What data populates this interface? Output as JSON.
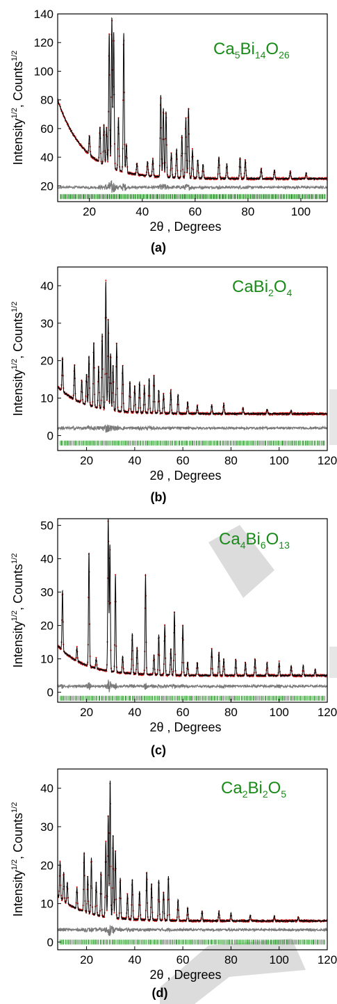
{
  "figure": {
    "panel_labels": [
      "(a)",
      "(b)",
      "(c)",
      "(d)"
    ]
  },
  "colors": {
    "observed": "#e02020",
    "calculated": "#000000",
    "difference": "#7a7a7a",
    "reflections": "#1a8a1a",
    "formula": "#1a8a1a",
    "watermark": "#d8d8d8"
  },
  "chart_data": [
    {
      "type": "line",
      "panel": "(a)",
      "compound": {
        "parts": [
          "Ca",
          "5",
          "Bi",
          "14",
          "O",
          "26"
        ]
      },
      "ylabel": {
        "main": "Intensity",
        "exp1": "1/2",
        "mid": ", Counts",
        "exp2": "1/2"
      },
      "xlabel": "2θ , Degrees",
      "xlim": [
        8,
        110
      ],
      "ylim": [
        9,
        140
      ],
      "xticks": [
        20,
        40,
        60,
        80,
        100
      ],
      "yticks": [
        20,
        40,
        60,
        80,
        100,
        120,
        140
      ],
      "difference_level": 19,
      "reflection_level": 12.5,
      "background": {
        "start": 80,
        "end": 25
      },
      "peaks": [
        {
          "x": 20,
          "y": 38
        },
        {
          "x": 24,
          "y": 50
        },
        {
          "x": 25.5,
          "y": 53
        },
        {
          "x": 26.5,
          "y": 52
        },
        {
          "x": 27.5,
          "y": 118
        },
        {
          "x": 28.5,
          "y": 130
        },
        {
          "x": 29.2,
          "y": 120
        },
        {
          "x": 31,
          "y": 62
        },
        {
          "x": 33,
          "y": 122
        },
        {
          "x": 34,
          "y": 45
        },
        {
          "x": 38,
          "y": 33
        },
        {
          "x": 42,
          "y": 35
        },
        {
          "x": 44,
          "y": 37
        },
        {
          "x": 47,
          "y": 82
        },
        {
          "x": 48,
          "y": 73
        },
        {
          "x": 49,
          "y": 71
        },
        {
          "x": 51,
          "y": 42
        },
        {
          "x": 53,
          "y": 45
        },
        {
          "x": 55,
          "y": 55
        },
        {
          "x": 56.5,
          "y": 67
        },
        {
          "x": 57.5,
          "y": 74
        },
        {
          "x": 59,
          "y": 45
        },
        {
          "x": 61,
          "y": 38
        },
        {
          "x": 63,
          "y": 35
        },
        {
          "x": 69,
          "y": 40
        },
        {
          "x": 72,
          "y": 35
        },
        {
          "x": 77,
          "y": 40
        },
        {
          "x": 79,
          "y": 38
        },
        {
          "x": 85,
          "y": 32
        },
        {
          "x": 90,
          "y": 31
        },
        {
          "x": 96,
          "y": 30
        },
        {
          "x": 102,
          "y": 29
        }
      ]
    },
    {
      "type": "line",
      "panel": "(b)",
      "compound": {
        "parts": [
          "CaBi",
          "2",
          "O",
          "4"
        ]
      },
      "ylabel": {
        "main": "Intensity",
        "exp1": "1/2",
        "mid": ", Counts",
        "exp2": "1/2"
      },
      "xlabel": "2θ , Degrees",
      "xlim": [
        8,
        120
      ],
      "ylim": [
        -4,
        45
      ],
      "xticks": [
        20,
        40,
        60,
        80,
        100,
        120
      ],
      "yticks": [
        0,
        10,
        20,
        30,
        40
      ],
      "difference_level": 2,
      "reflection_level": -2,
      "background": {
        "start": 13,
        "end": 5.8
      },
      "peaks": [
        {
          "x": 10,
          "y": 15
        },
        {
          "x": 15,
          "y": 15
        },
        {
          "x": 18,
          "y": 12
        },
        {
          "x": 20,
          "y": 14
        },
        {
          "x": 21,
          "y": 19
        },
        {
          "x": 23,
          "y": 23
        },
        {
          "x": 25,
          "y": 17
        },
        {
          "x": 26.5,
          "y": 26
        },
        {
          "x": 28,
          "y": 40
        },
        {
          "x": 29,
          "y": 30
        },
        {
          "x": 30,
          "y": 21
        },
        {
          "x": 31,
          "y": 18
        },
        {
          "x": 32.5,
          "y": 24
        },
        {
          "x": 35,
          "y": 18
        },
        {
          "x": 38,
          "y": 14
        },
        {
          "x": 40,
          "y": 13
        },
        {
          "x": 42,
          "y": 14
        },
        {
          "x": 44,
          "y": 13
        },
        {
          "x": 46,
          "y": 15
        },
        {
          "x": 48,
          "y": 16
        },
        {
          "x": 50,
          "y": 12
        },
        {
          "x": 52,
          "y": 11
        },
        {
          "x": 55,
          "y": 12
        },
        {
          "x": 58,
          "y": 11
        },
        {
          "x": 62,
          "y": 9
        },
        {
          "x": 66,
          "y": 8
        },
        {
          "x": 72,
          "y": 8
        },
        {
          "x": 77,
          "y": 8.5
        },
        {
          "x": 85,
          "y": 7.5
        },
        {
          "x": 95,
          "y": 7
        },
        {
          "x": 105,
          "y": 6.8
        }
      ]
    },
    {
      "type": "line",
      "panel": "(c)",
      "compound": {
        "parts": [
          "Ca",
          "4",
          "Bi",
          "6",
          "O",
          "13"
        ]
      },
      "ylabel": {
        "main": "Intensity",
        "exp1": "1/2",
        "mid": ", Counts",
        "exp2": "1/2"
      },
      "xlabel": "2θ , Degrees",
      "xlim": [
        8,
        120
      ],
      "ylim": [
        -3,
        52
      ],
      "xticks": [
        20,
        40,
        60,
        80,
        100,
        120
      ],
      "yticks": [
        0,
        10,
        20,
        30,
        40,
        50
      ],
      "difference_level": 1.8,
      "reflection_level": -1.8,
      "background": {
        "start": 14,
        "end": 5
      },
      "peaks": [
        {
          "x": 10,
          "y": 23
        },
        {
          "x": 16,
          "y": 9
        },
        {
          "x": 21,
          "y": 39
        },
        {
          "x": 24,
          "y": 8
        },
        {
          "x": 29,
          "y": 51
        },
        {
          "x": 29.7,
          "y": 43
        },
        {
          "x": 32,
          "y": 34
        },
        {
          "x": 35,
          "y": 10
        },
        {
          "x": 39,
          "y": 17
        },
        {
          "x": 41,
          "y": 13
        },
        {
          "x": 44.5,
          "y": 35
        },
        {
          "x": 48,
          "y": 11
        },
        {
          "x": 50,
          "y": 17
        },
        {
          "x": 52.5,
          "y": 20
        },
        {
          "x": 55,
          "y": 13
        },
        {
          "x": 56.5,
          "y": 24
        },
        {
          "x": 60,
          "y": 20
        },
        {
          "x": 62,
          "y": 9
        },
        {
          "x": 66,
          "y": 9
        },
        {
          "x": 72,
          "y": 13
        },
        {
          "x": 75,
          "y": 12
        },
        {
          "x": 77,
          "y": 10
        },
        {
          "x": 82,
          "y": 10
        },
        {
          "x": 86,
          "y": 9
        },
        {
          "x": 90,
          "y": 10
        },
        {
          "x": 95,
          "y": 9
        },
        {
          "x": 100,
          "y": 9
        },
        {
          "x": 105,
          "y": 8
        },
        {
          "x": 110,
          "y": 8
        },
        {
          "x": 115,
          "y": 7
        }
      ]
    },
    {
      "type": "line",
      "panel": "(d)",
      "compound": {
        "parts": [
          "Ca",
          "2",
          "Bi",
          "2",
          "O",
          "5"
        ]
      },
      "ylabel": {
        "main": "Intensity",
        "exp1": "1/2",
        "mid": ", Counts",
        "exp2": "1/2"
      },
      "xlabel": "2θ , Degrees",
      "xlim": [
        8,
        120
      ],
      "ylim": [
        -2,
        45
      ],
      "xticks": [
        20,
        40,
        60,
        80,
        100,
        120
      ],
      "yticks": [
        0,
        10,
        20,
        30,
        40
      ],
      "difference_level": 3.2,
      "reflection_level": 0,
      "background": {
        "start": 12,
        "end": 5.5
      },
      "peaks": [
        {
          "x": 9,
          "y": 15
        },
        {
          "x": 10.5,
          "y": 13
        },
        {
          "x": 12,
          "y": 11
        },
        {
          "x": 16,
          "y": 11
        },
        {
          "x": 19,
          "y": 21
        },
        {
          "x": 20.5,
          "y": 15
        },
        {
          "x": 22,
          "y": 20
        },
        {
          "x": 24,
          "y": 14
        },
        {
          "x": 26,
          "y": 17
        },
        {
          "x": 28,
          "y": 25
        },
        {
          "x": 29,
          "y": 32
        },
        {
          "x": 29.8,
          "y": 41
        },
        {
          "x": 31,
          "y": 27
        },
        {
          "x": 32,
          "y": 23
        },
        {
          "x": 34,
          "y": 16
        },
        {
          "x": 37,
          "y": 12
        },
        {
          "x": 39,
          "y": 16
        },
        {
          "x": 42,
          "y": 13
        },
        {
          "x": 45,
          "y": 18
        },
        {
          "x": 47,
          "y": 15
        },
        {
          "x": 50,
          "y": 16
        },
        {
          "x": 52,
          "y": 13
        },
        {
          "x": 54,
          "y": 17
        },
        {
          "x": 58,
          "y": 11
        },
        {
          "x": 62,
          "y": 9
        },
        {
          "x": 68,
          "y": 8
        },
        {
          "x": 75,
          "y": 8
        },
        {
          "x": 80,
          "y": 7.5
        },
        {
          "x": 88,
          "y": 7
        },
        {
          "x": 98,
          "y": 6.8
        },
        {
          "x": 108,
          "y": 6.5
        }
      ]
    }
  ]
}
